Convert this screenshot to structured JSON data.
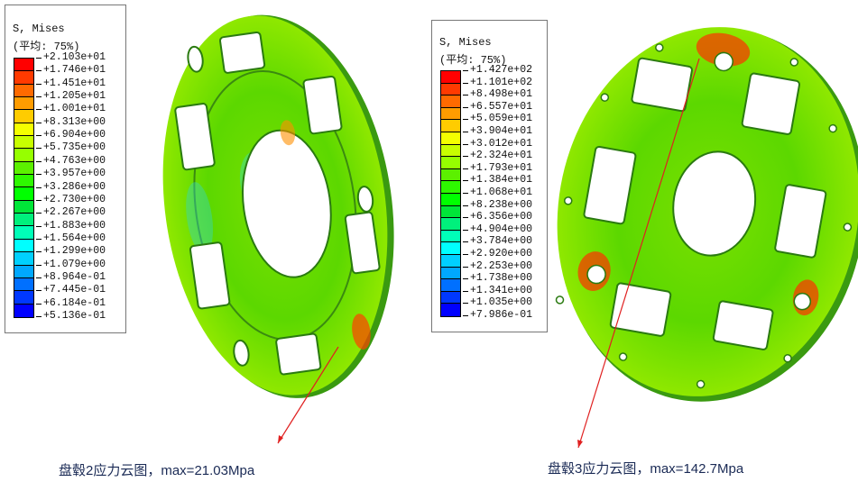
{
  "left_legend": {
    "title": "S, Mises",
    "subtitle": "(平均: 75%)",
    "ticks": [
      "+2.103e+01",
      "+1.746e+01",
      "+1.451e+01",
      "+1.205e+01",
      "+1.001e+01",
      "+8.313e+00",
      "+6.904e+00",
      "+5.735e+00",
      "+4.763e+00",
      "+3.957e+00",
      "+3.286e+00",
      "+2.730e+00",
      "+2.267e+00",
      "+1.883e+00",
      "+1.564e+00",
      "+1.299e+00",
      "+1.079e+00",
      "+8.964e-01",
      "+7.445e-01",
      "+6.184e-01",
      "+5.136e-01"
    ]
  },
  "right_legend": {
    "title": "S, Mises",
    "subtitle": "(平均: 75%)",
    "ticks": [
      "+1.427e+02",
      "+1.101e+02",
      "+8.498e+01",
      "+6.557e+01",
      "+5.059e+01",
      "+3.904e+01",
      "+3.012e+01",
      "+2.324e+01",
      "+1.793e+01",
      "+1.384e+01",
      "+1.068e+01",
      "+8.238e+00",
      "+6.356e+00",
      "+4.904e+00",
      "+3.784e+00",
      "+2.920e+00",
      "+2.253e+00",
      "+1.738e+00",
      "+1.341e+00",
      "+1.035e+00",
      "+7.986e-01"
    ]
  },
  "band_colors": [
    "#ff0000",
    "#ff3a00",
    "#ff6a00",
    "#ff9c00",
    "#ffcc00",
    "#f4ff00",
    "#c8ff00",
    "#96ff00",
    "#5cf000",
    "#2ef800",
    "#00ff00",
    "#00e638",
    "#00f07c",
    "#00ffb8",
    "#00ffff",
    "#00d0ff",
    "#00a8ff",
    "#0070ff",
    "#0038ff",
    "#0000ff"
  ],
  "captions": {
    "left": "盘毂2应力云图，max=21.03Mpa",
    "right": "盘毂3应力云图，max=142.7Mpa"
  },
  "arrow_color": "#e02020"
}
